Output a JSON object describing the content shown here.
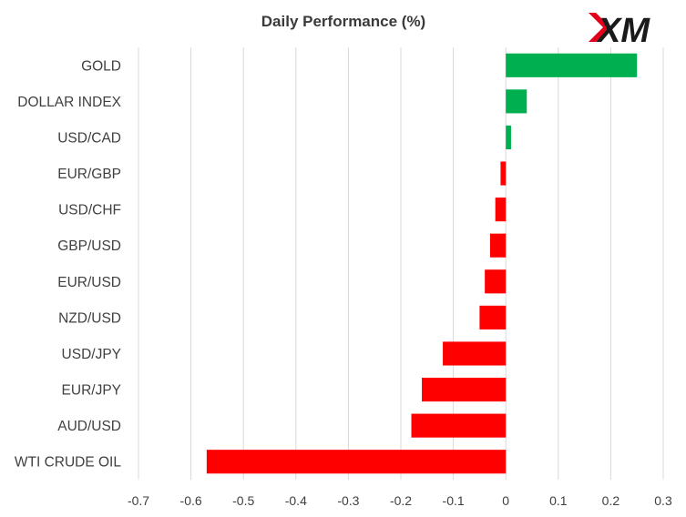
{
  "logo": {
    "text": "XM",
    "accent": "#e2001a"
  },
  "chart_data": {
    "type": "bar",
    "orientation": "horizontal",
    "title": "Daily Performance (%)",
    "xlabel": "",
    "ylabel": "",
    "categories": [
      "GOLD",
      "DOLLAR INDEX",
      "USD/CAD",
      "EUR/GBP",
      "USD/CHF",
      "GBP/USD",
      "EUR/USD",
      "NZD/USD",
      "USD/JPY",
      "EUR/JPY",
      "AUD/USD",
      "WTI CRUDE OIL"
    ],
    "values": [
      0.25,
      0.04,
      0.01,
      -0.01,
      -0.02,
      -0.03,
      -0.04,
      -0.05,
      -0.12,
      -0.16,
      -0.18,
      -0.57
    ],
    "xlim": [
      -0.7,
      0.3
    ],
    "xticks": [
      "-0.7",
      "-0.6",
      "-0.5",
      "-0.4",
      "-0.3",
      "-0.2",
      "-0.1",
      "0",
      "0.1",
      "0.2",
      "0.3"
    ],
    "xtick_values": [
      -0.7,
      -0.6,
      -0.5,
      -0.4,
      -0.3,
      -0.2,
      -0.1,
      0,
      0.1,
      0.2,
      0.3
    ],
    "grid": "vertical",
    "legend": "none",
    "colors": {
      "positive": "#00b050",
      "negative": "#ff0000",
      "grid": "#d9d9d9"
    }
  }
}
